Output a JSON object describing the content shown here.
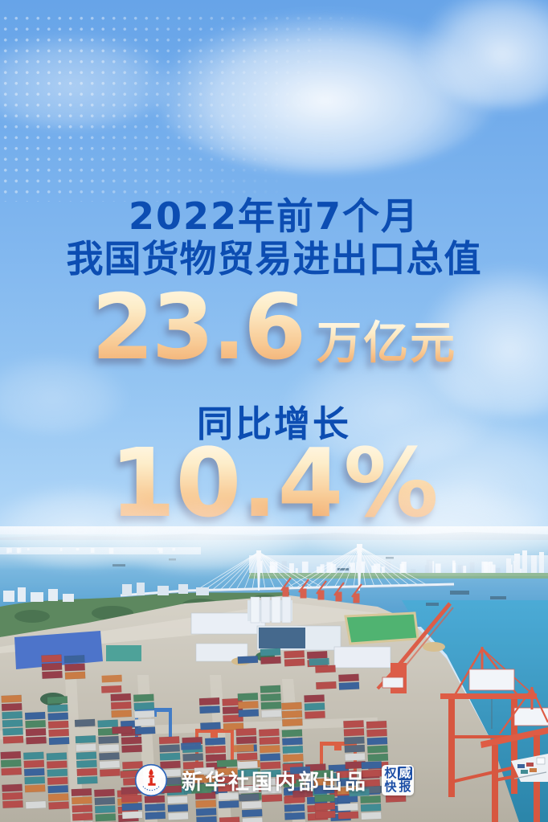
{
  "poster": {
    "headline": {
      "line1": "2022年前7个月",
      "line2": "我国货物贸易进出口总值"
    },
    "stats": [
      {
        "value": "23.6",
        "unit": "万亿元"
      },
      {
        "label": "同比增长",
        "value": "10.4%"
      }
    ],
    "footer": {
      "credit": "新华社国内部出品",
      "badge": {
        "chars": [
          "权",
          "威",
          "快",
          "报"
        ]
      },
      "logo": "xinhua-torch-logo"
    },
    "scene": "aerial-view-of-container-port-with-red-cranes-bridge-and-sea",
    "colors": {
      "headline_blue": "#0c4db2",
      "gold_top": "#fff8e8",
      "gold_bottom": "#f0a565",
      "sky_top": "#67a4e8",
      "sky_horizon": "#e3f1fc",
      "sea_blue": "#3d92c8",
      "sea_turquoise": "#1f8fbe",
      "crane_red": "#dd4a2c",
      "pavement": "#c9c1b0",
      "container_palette": [
        "#b23934",
        "#8f2a33",
        "#27538f",
        "#2e8187",
        "#3c7a50",
        "#c96f2d",
        "#d8d8d4",
        "#47586b"
      ]
    }
  }
}
